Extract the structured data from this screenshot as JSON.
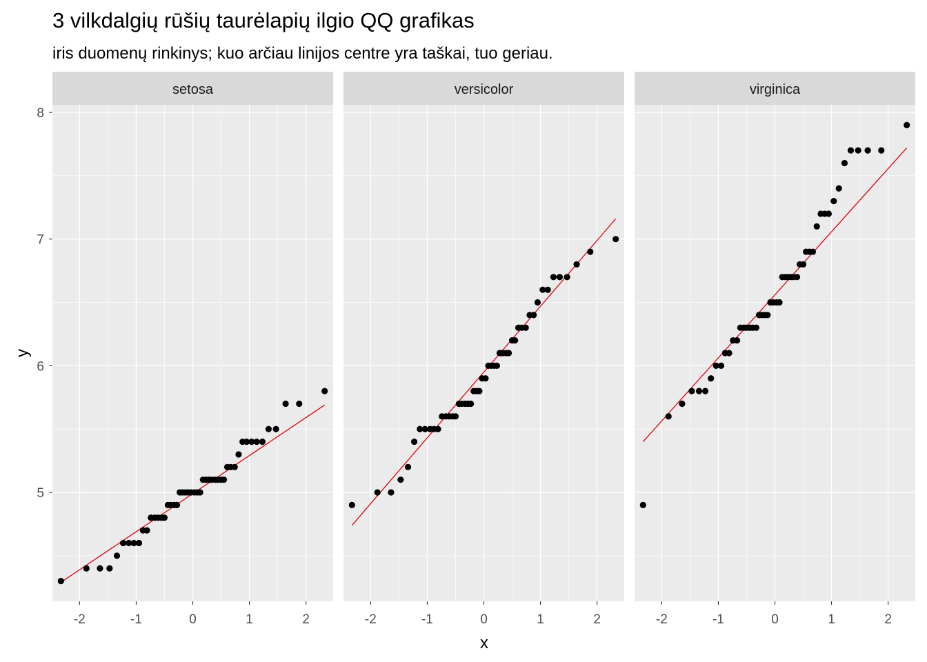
{
  "title": "3 vilkdalgių rūšių taurėlapių ilgio QQ grafikas",
  "subtitle": "iris duomenų rinkinys; kuo arčiau linijos centre yra taškai, tuo geriau.",
  "colors": {
    "panel_background": "#ebebeb",
    "strip_background": "#d9d9d9",
    "grid": "#ffffff",
    "points": "#000000",
    "reference_line": "#e0000d",
    "tick_text": "#4d4d4d"
  },
  "chart_data": {
    "type": "scatter",
    "subtype": "qq",
    "xlabel": "x",
    "ylabel": "y",
    "xlim": [
      -2.48,
      2.48
    ],
    "ylim": [
      4.14,
      8.06
    ],
    "x_ticks": [
      "-2",
      "-1",
      "0",
      "1",
      "2"
    ],
    "x_tick_values": [
      -2,
      -1,
      0,
      1,
      2
    ],
    "y_ticks": [
      "5",
      "6",
      "7",
      "8"
    ],
    "y_tick_values": [
      5,
      6,
      7,
      8
    ],
    "facets": [
      {
        "name": "setosa",
        "points": [
          [
            -2.33,
            4.3
          ],
          [
            -1.88,
            4.4
          ],
          [
            -1.64,
            4.4
          ],
          [
            -1.47,
            4.4
          ],
          [
            -1.34,
            4.5
          ],
          [
            -1.23,
            4.6
          ],
          [
            -1.13,
            4.6
          ],
          [
            -1.04,
            4.6
          ],
          [
            -0.95,
            4.6
          ],
          [
            -0.88,
            4.7
          ],
          [
            -0.81,
            4.7
          ],
          [
            -0.74,
            4.8
          ],
          [
            -0.67,
            4.8
          ],
          [
            -0.61,
            4.8
          ],
          [
            -0.55,
            4.8
          ],
          [
            -0.5,
            4.8
          ],
          [
            -0.44,
            4.9
          ],
          [
            -0.39,
            4.9
          ],
          [
            -0.33,
            4.9
          ],
          [
            -0.28,
            4.9
          ],
          [
            -0.23,
            5.0
          ],
          [
            -0.18,
            5.0
          ],
          [
            -0.13,
            5.0
          ],
          [
            -0.08,
            5.0
          ],
          [
            -0.03,
            5.0
          ],
          [
            0.03,
            5.0
          ],
          [
            0.08,
            5.0
          ],
          [
            0.13,
            5.0
          ],
          [
            0.18,
            5.1
          ],
          [
            0.23,
            5.1
          ],
          [
            0.28,
            5.1
          ],
          [
            0.33,
            5.1
          ],
          [
            0.39,
            5.1
          ],
          [
            0.44,
            5.1
          ],
          [
            0.5,
            5.1
          ],
          [
            0.55,
            5.1
          ],
          [
            0.61,
            5.2
          ],
          [
            0.67,
            5.2
          ],
          [
            0.74,
            5.2
          ],
          [
            0.81,
            5.3
          ],
          [
            0.88,
            5.4
          ],
          [
            0.95,
            5.4
          ],
          [
            1.04,
            5.4
          ],
          [
            1.13,
            5.4
          ],
          [
            1.23,
            5.4
          ],
          [
            1.34,
            5.5
          ],
          [
            1.47,
            5.5
          ],
          [
            1.64,
            5.7
          ],
          [
            1.88,
            5.7
          ],
          [
            2.33,
            5.8
          ]
        ],
        "line": [
          [
            -2.33,
            4.29
          ],
          [
            2.33,
            5.69
          ]
        ]
      },
      {
        "name": "versicolor",
        "points": [
          [
            -2.33,
            4.9
          ],
          [
            -1.88,
            5.0
          ],
          [
            -1.64,
            5.0
          ],
          [
            -1.47,
            5.1
          ],
          [
            -1.34,
            5.2
          ],
          [
            -1.23,
            5.4
          ],
          [
            -1.13,
            5.5
          ],
          [
            -1.04,
            5.5
          ],
          [
            -0.95,
            5.5
          ],
          [
            -0.88,
            5.5
          ],
          [
            -0.81,
            5.5
          ],
          [
            -0.74,
            5.6
          ],
          [
            -0.67,
            5.6
          ],
          [
            -0.61,
            5.6
          ],
          [
            -0.55,
            5.6
          ],
          [
            -0.5,
            5.6
          ],
          [
            -0.44,
            5.7
          ],
          [
            -0.39,
            5.7
          ],
          [
            -0.33,
            5.7
          ],
          [
            -0.28,
            5.7
          ],
          [
            -0.23,
            5.7
          ],
          [
            -0.18,
            5.8
          ],
          [
            -0.13,
            5.8
          ],
          [
            -0.08,
            5.8
          ],
          [
            -0.03,
            5.9
          ],
          [
            0.03,
            5.9
          ],
          [
            0.08,
            6.0
          ],
          [
            0.13,
            6.0
          ],
          [
            0.18,
            6.0
          ],
          [
            0.23,
            6.0
          ],
          [
            0.28,
            6.1
          ],
          [
            0.33,
            6.1
          ],
          [
            0.39,
            6.1
          ],
          [
            0.44,
            6.1
          ],
          [
            0.5,
            6.2
          ],
          [
            0.55,
            6.2
          ],
          [
            0.61,
            6.3
          ],
          [
            0.67,
            6.3
          ],
          [
            0.74,
            6.3
          ],
          [
            0.81,
            6.4
          ],
          [
            0.88,
            6.4
          ],
          [
            0.95,
            6.5
          ],
          [
            1.04,
            6.6
          ],
          [
            1.13,
            6.6
          ],
          [
            1.23,
            6.7
          ],
          [
            1.34,
            6.7
          ],
          [
            1.47,
            6.7
          ],
          [
            1.64,
            6.8
          ],
          [
            1.88,
            6.9
          ],
          [
            2.33,
            7.0
          ]
        ],
        "line": [
          [
            -2.33,
            4.74
          ],
          [
            2.33,
            7.16
          ]
        ]
      },
      {
        "name": "virginica",
        "points": [
          [
            -2.33,
            4.9
          ],
          [
            -1.88,
            5.6
          ],
          [
            -1.64,
            5.7
          ],
          [
            -1.47,
            5.8
          ],
          [
            -1.34,
            5.8
          ],
          [
            -1.23,
            5.8
          ],
          [
            -1.13,
            5.9
          ],
          [
            -1.04,
            6.0
          ],
          [
            -0.95,
            6.0
          ],
          [
            -0.88,
            6.1
          ],
          [
            -0.81,
            6.1
          ],
          [
            -0.74,
            6.2
          ],
          [
            -0.67,
            6.2
          ],
          [
            -0.61,
            6.3
          ],
          [
            -0.55,
            6.3
          ],
          [
            -0.5,
            6.3
          ],
          [
            -0.44,
            6.3
          ],
          [
            -0.39,
            6.3
          ],
          [
            -0.33,
            6.3
          ],
          [
            -0.28,
            6.4
          ],
          [
            -0.23,
            6.4
          ],
          [
            -0.18,
            6.4
          ],
          [
            -0.13,
            6.4
          ],
          [
            -0.08,
            6.5
          ],
          [
            -0.03,
            6.5
          ],
          [
            0.03,
            6.5
          ],
          [
            0.08,
            6.5
          ],
          [
            0.13,
            6.7
          ],
          [
            0.18,
            6.7
          ],
          [
            0.23,
            6.7
          ],
          [
            0.28,
            6.7
          ],
          [
            0.33,
            6.7
          ],
          [
            0.39,
            6.7
          ],
          [
            0.44,
            6.8
          ],
          [
            0.5,
            6.8
          ],
          [
            0.55,
            6.9
          ],
          [
            0.61,
            6.9
          ],
          [
            0.67,
            6.9
          ],
          [
            0.74,
            7.1
          ],
          [
            0.81,
            7.2
          ],
          [
            0.88,
            7.2
          ],
          [
            0.95,
            7.2
          ],
          [
            1.04,
            7.3
          ],
          [
            1.13,
            7.4
          ],
          [
            1.23,
            7.6
          ],
          [
            1.34,
            7.7
          ],
          [
            1.47,
            7.7
          ],
          [
            1.64,
            7.7
          ],
          [
            1.88,
            7.7
          ],
          [
            2.33,
            7.9
          ]
        ],
        "line": [
          [
            -2.33,
            5.4
          ],
          [
            2.33,
            7.72
          ]
        ]
      }
    ]
  }
}
